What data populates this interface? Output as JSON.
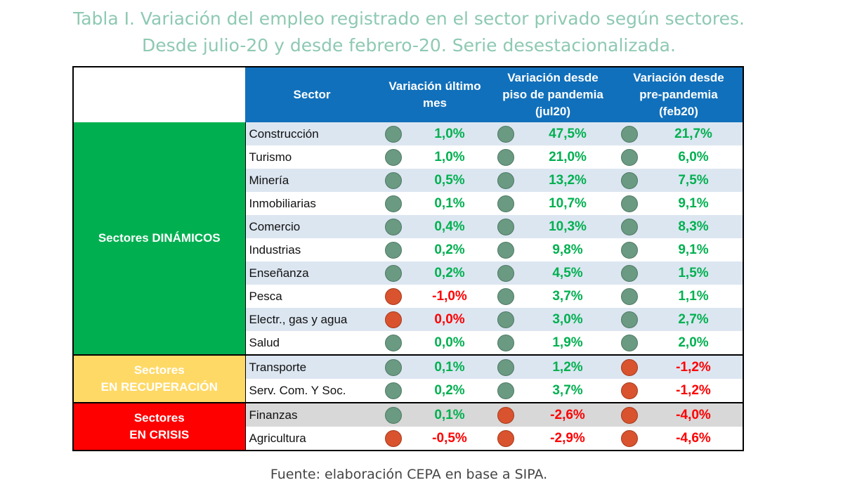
{
  "title": {
    "line1": "Tabla I. Variación del empleo registrado en el sector privado según sectores.",
    "line2": "Desde julio-20 y desde febrero-20. Serie desestacionalizada."
  },
  "headers": {
    "sector": "Sector",
    "col1_l1": "Variación último",
    "col1_l2": "mes",
    "col2_l1": "Variación desde",
    "col2_l2": "piso de pandemia",
    "col2_l3": "(jul20)",
    "col3_l1": "Variación desde",
    "col3_l2": "pre-pandemia",
    "col3_l3": "(feb20)"
  },
  "groups": {
    "dinamicos": "Sectores DINÁMICOS",
    "recuperacion_l1": "Sectores",
    "recuperacion_l2": "EN RECUPERACIÓN",
    "crisis_l1": "Sectores",
    "crisis_l2": "EN CRISIS"
  },
  "rows": [
    {
      "sector": "Construcción",
      "v1": "1,0%",
      "v2": "47,5%",
      "v3": "21,7%",
      "s1": "pos",
      "s2": "pos",
      "s3": "pos"
    },
    {
      "sector": "Turismo",
      "v1": "1,0%",
      "v2": "21,0%",
      "v3": "6,0%",
      "s1": "pos",
      "s2": "pos",
      "s3": "pos"
    },
    {
      "sector": "Minería",
      "v1": "0,5%",
      "v2": "13,2%",
      "v3": "7,5%",
      "s1": "pos",
      "s2": "pos",
      "s3": "pos"
    },
    {
      "sector": "Inmobiliarias",
      "v1": "0,1%",
      "v2": "10,7%",
      "v3": "9,1%",
      "s1": "pos",
      "s2": "pos",
      "s3": "pos"
    },
    {
      "sector": "Comercio",
      "v1": "0,4%",
      "v2": "10,3%",
      "v3": "8,3%",
      "s1": "pos",
      "s2": "pos",
      "s3": "pos"
    },
    {
      "sector": "Industrias",
      "v1": "0,2%",
      "v2": "9,8%",
      "v3": "9,1%",
      "s1": "pos",
      "s2": "pos",
      "s3": "pos"
    },
    {
      "sector": "Enseñanza",
      "v1": "0,2%",
      "v2": "4,5%",
      "v3": "1,5%",
      "s1": "pos",
      "s2": "pos",
      "s3": "pos"
    },
    {
      "sector": "Pesca",
      "v1": "-1,0%",
      "v2": "3,7%",
      "v3": "1,1%",
      "s1": "neg",
      "s2": "pos",
      "s3": "pos"
    },
    {
      "sector": "Electr., gas y agua",
      "v1": "0,0%",
      "v2": "3,0%",
      "v3": "2,7%",
      "s1": "neg",
      "s2": "pos",
      "s3": "pos"
    },
    {
      "sector": "Salud",
      "v1": "0,0%",
      "v2": "1,9%",
      "v3": "2,0%",
      "s1": "pos",
      "s2": "pos",
      "s3": "pos"
    },
    {
      "sector": "Transporte",
      "v1": "0,1%",
      "v2": "1,2%",
      "v3": "-1,2%",
      "s1": "pos",
      "s2": "pos",
      "s3": "neg"
    },
    {
      "sector": "Serv. Com. Y Soc.",
      "v1": "0,2%",
      "v2": "3,7%",
      "v3": "-1,2%",
      "s1": "pos",
      "s2": "pos",
      "s3": "neg"
    },
    {
      "sector": "Finanzas",
      "v1": "0,1%",
      "v2": "-2,6%",
      "v3": "-4,0%",
      "s1": "pos",
      "s2": "neg",
      "s3": "neg"
    },
    {
      "sector": "Agricultura",
      "v1": "-0,5%",
      "v2": "-2,9%",
      "v3": "-4,6%",
      "s1": "neg",
      "s2": "neg",
      "s3": "neg"
    }
  ],
  "source": "Fuente: elaboración CEPA en base a SIPA.",
  "colors": {
    "positive": "#00b050",
    "negative": "#ff0000",
    "header_bg": "#1170bb",
    "dynamic_bg": "#00b050",
    "recovery_bg": "#ffd966",
    "crisis_bg": "#ff0000"
  }
}
